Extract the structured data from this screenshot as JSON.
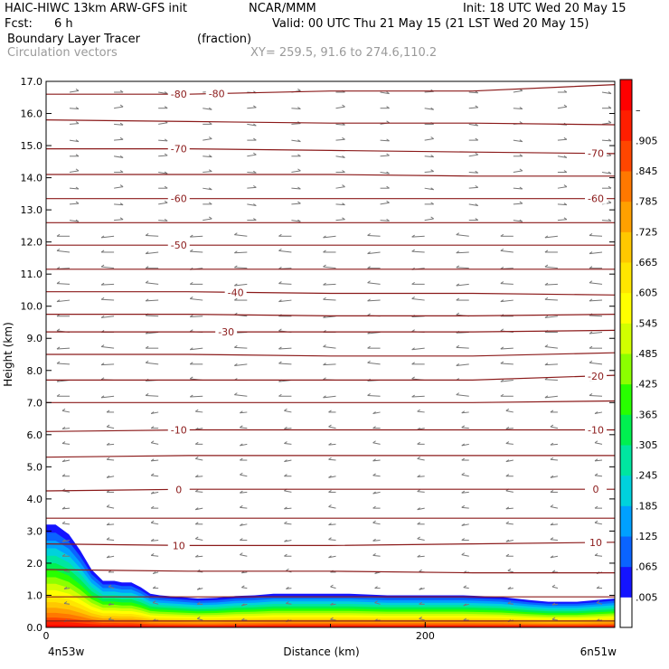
{
  "header": {
    "model": "HAIC-HIWC 13km ARW-GFS init",
    "org": "NCAR/MMM",
    "init": "Init: 18 UTC Wed 20 May 15",
    "fcst_label": "Fcst:",
    "fcst_value": "6 h",
    "valid": "Valid: 00 UTC Thu 21 May 15 (21 LST Wed 20 May 15)",
    "field": "Boundary Layer Tracer",
    "units": "(fraction)",
    "vectors": "Circulation vectors",
    "xy": "XY= 259.5, 91.6 to 274.6,110.2"
  },
  "chart_data": {
    "type": "heatmap",
    "ylabel": "Height (km)",
    "xlabel": "Distance (km)",
    "x_start_label": "4n53w",
    "x_end_label": "6n51w",
    "xlim": [
      0,
      300
    ],
    "ylim": [
      0,
      17
    ],
    "x_ticks": [
      "0",
      "200"
    ],
    "y_ticks": [
      "0.0",
      "1.0",
      "2.0",
      "3.0",
      "4.0",
      "5.0",
      "6.0",
      "7.0",
      "8.0",
      "9.0",
      "10.0",
      "11.0",
      "12.0",
      "13.0",
      "14.0",
      "15.0",
      "16.0",
      "17.0"
    ],
    "colorbar_labels": [
      ".005",
      ".065",
      ".125",
      ".185",
      ".245",
      ".305",
      ".365",
      ".425",
      ".485",
      ".545",
      ".605",
      ".665",
      ".725",
      ".785",
      ".845",
      ".905",
      "–"
    ],
    "colorbar_colors": [
      "#ffffff",
      "#1414ff",
      "#0a64ff",
      "#00a0ff",
      "#00d2dc",
      "#00e6a0",
      "#00f050",
      "#28ff00",
      "#8cff00",
      "#d2ff00",
      "#ffff00",
      "#ffe600",
      "#ffc800",
      "#ffa000",
      "#ff7800",
      "#ff4600",
      "#ff1e00",
      "#ff0000"
    ],
    "temperature_contours": [
      {
        "label": "-80",
        "heights": [
          16.6,
          16.6,
          16.7,
          16.7,
          16.9
        ]
      },
      {
        "label": "",
        "heights": [
          15.8,
          15.75,
          15.7,
          15.7,
          15.65
        ]
      },
      {
        "label": "-70",
        "heights": [
          14.9,
          14.9,
          14.85,
          14.8,
          14.75
        ]
      },
      {
        "label": "",
        "heights": [
          14.1,
          14.1,
          14.1,
          14.05,
          14.05
        ]
      },
      {
        "label": "-60",
        "heights": [
          13.35,
          13.35,
          13.35,
          13.35,
          13.35
        ]
      },
      {
        "label": "",
        "heights": [
          12.6,
          12.6,
          12.6,
          12.6,
          12.6
        ]
      },
      {
        "label": "-50",
        "heights": [
          11.9,
          11.9,
          11.9,
          11.9,
          11.9
        ]
      },
      {
        "label": "",
        "heights": [
          11.15,
          11.15,
          11.15,
          11.15,
          11.15
        ]
      },
      {
        "label": "-40",
        "heights": [
          10.45,
          10.45,
          10.4,
          10.4,
          10.35
        ]
      },
      {
        "label": "",
        "heights": [
          9.75,
          9.75,
          9.7,
          9.7,
          9.75
        ]
      },
      {
        "label": "-30",
        "heights": [
          9.2,
          9.2,
          9.2,
          9.2,
          9.25
        ]
      },
      {
        "label": "",
        "heights": [
          8.5,
          8.5,
          8.45,
          8.45,
          8.55
        ]
      },
      {
        "label": "-20",
        "heights": [
          7.7,
          7.7,
          7.7,
          7.7,
          7.85
        ]
      },
      {
        "label": "",
        "heights": [
          7.0,
          7.0,
          7.0,
          7.0,
          7.05
        ]
      },
      {
        "label": "-10",
        "heights": [
          6.1,
          6.15,
          6.15,
          6.15,
          6.15
        ]
      },
      {
        "label": "",
        "heights": [
          5.3,
          5.35,
          5.35,
          5.35,
          5.35
        ]
      },
      {
        "label": "0",
        "heights": [
          4.25,
          4.3,
          4.3,
          4.3,
          4.3
        ]
      },
      {
        "label": "",
        "heights": [
          3.4,
          3.4,
          3.4,
          3.4,
          3.4
        ]
      },
      {
        "label": "10",
        "heights": [
          2.6,
          2.55,
          2.55,
          2.6,
          2.65
        ]
      },
      {
        "label": "",
        "heights": [
          1.8,
          1.75,
          1.75,
          1.7,
          1.7
        ]
      },
      {
        "label": "",
        "heights": [
          0.95,
          0.95,
          0.95,
          0.95,
          0.95
        ]
      },
      {
        "label": "",
        "heights": [
          0.2,
          0.2,
          0.2,
          0.2,
          0.2
        ]
      }
    ],
    "contour_label_positions_km": [
      [
        70,
        90
      ],
      [],
      [
        70,
        290
      ],
      [],
      [
        70,
        290
      ],
      [],
      [
        70
      ],
      [],
      [
        100
      ],
      [],
      [
        95
      ],
      [],
      [
        290
      ],
      [],
      [
        70,
        290
      ],
      [],
      [
        70,
        290
      ],
      [],
      [
        70,
        290
      ],
      [],
      [],
      []
    ],
    "tracer_top_km": {
      "x_km": [
        0,
        5,
        12,
        18,
        24,
        30,
        36,
        40,
        45,
        50,
        55,
        60,
        70,
        80,
        90,
        100,
        110,
        120,
        130,
        140,
        150,
        160,
        180,
        200,
        220,
        240,
        255,
        265,
        280,
        290,
        300
      ],
      "height": [
        3.2,
        3.2,
        2.9,
        2.4,
        1.8,
        1.45,
        1.45,
        1.4,
        1.4,
        1.25,
        1.05,
        1.0,
        0.95,
        0.9,
        0.92,
        0.98,
        1.0,
        1.05,
        1.05,
        1.05,
        1.05,
        1.05,
        1.0,
        1.0,
        1.0,
        0.95,
        0.85,
        0.8,
        0.8,
        0.85,
        0.9
      ]
    }
  }
}
